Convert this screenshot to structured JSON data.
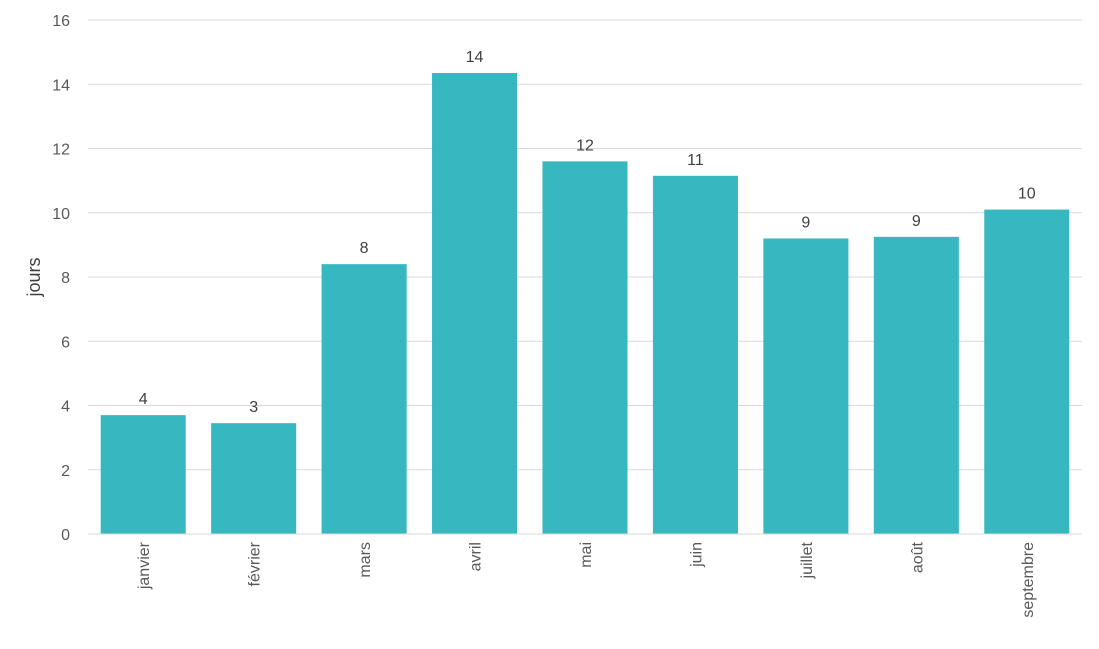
{
  "chart_data": {
    "type": "bar",
    "categories": [
      "janvier",
      "février",
      "mars",
      "avril",
      "mai",
      "juin",
      "juillet",
      "août",
      "septembre"
    ],
    "values": [
      3.7,
      3.45,
      8.4,
      14.35,
      11.6,
      11.15,
      9.2,
      9.25,
      10.1
    ],
    "data_labels": [
      "4",
      "3",
      "8",
      "14",
      "12",
      "11",
      "9",
      "9",
      "10"
    ],
    "title": "",
    "xlabel": "",
    "ylabel": "jours",
    "ylim": [
      0,
      16
    ],
    "yticks": [
      0,
      2,
      4,
      6,
      8,
      10,
      12,
      14,
      16
    ],
    "grid": true,
    "bar_color": "#37B8C1"
  }
}
